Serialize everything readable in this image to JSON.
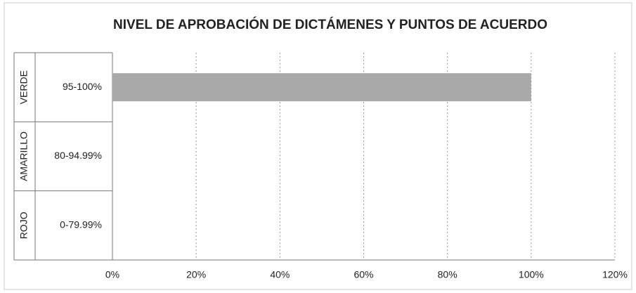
{
  "chart_data": {
    "type": "barh",
    "title": "NIVEL DE APROBACIÓN DE DICTÁMENES Y PUNTOS DE ACUERDO",
    "groups": [
      "VERDE",
      "AMARILLO",
      "ROJO"
    ],
    "categories": [
      "95-100%",
      "80-94.99%",
      "0-79.99%"
    ],
    "values": [
      100,
      0,
      0
    ],
    "color": "#a9a9a9",
    "xlim": [
      0,
      120
    ],
    "xticks": [
      {
        "value": 0,
        "label": "0%"
      },
      {
        "value": 20,
        "label": "20%"
      },
      {
        "value": 40,
        "label": "40%"
      },
      {
        "value": 60,
        "label": "60%"
      },
      {
        "value": 80,
        "label": "80%"
      },
      {
        "value": 100,
        "label": "100%"
      },
      {
        "value": 120,
        "label": "120%"
      }
    ],
    "grid": true
  }
}
